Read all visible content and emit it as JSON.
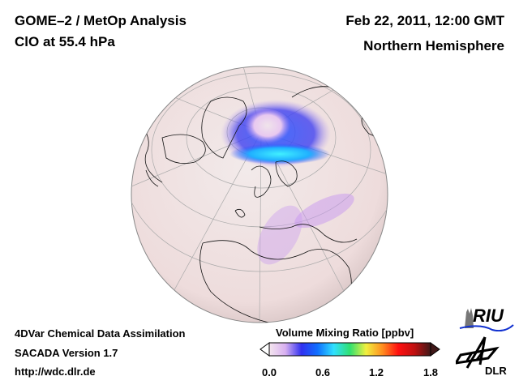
{
  "header": {
    "title": "GOME–2 / MetOp Analysis",
    "subtitle": "ClO at 55.4 hPa",
    "date": "Feb 22, 2011, 12:00 GMT",
    "region": "Northern Hemisphere"
  },
  "footer": {
    "line1": "4DVar Chemical Data Assimilation",
    "line2": "SACADA Version 1.7",
    "line3": "http://wdc.dlr.de"
  },
  "colorbar": {
    "title": "Volume Mixing Ratio [ppbv]",
    "min": 0.0,
    "max": 1.8,
    "ticks": [
      "0.0",
      "0.6",
      "1.2",
      "1.8"
    ],
    "colors": [
      "#f4e6ee",
      "#d8b0f0",
      "#3030f0",
      "#1070ff",
      "#30e0ff",
      "#30e070",
      "#f0f040",
      "#ff9020",
      "#ff1010",
      "#c01010",
      "#401818"
    ]
  },
  "logos": {
    "riu": "RIU",
    "dlr": "DLR"
  }
}
